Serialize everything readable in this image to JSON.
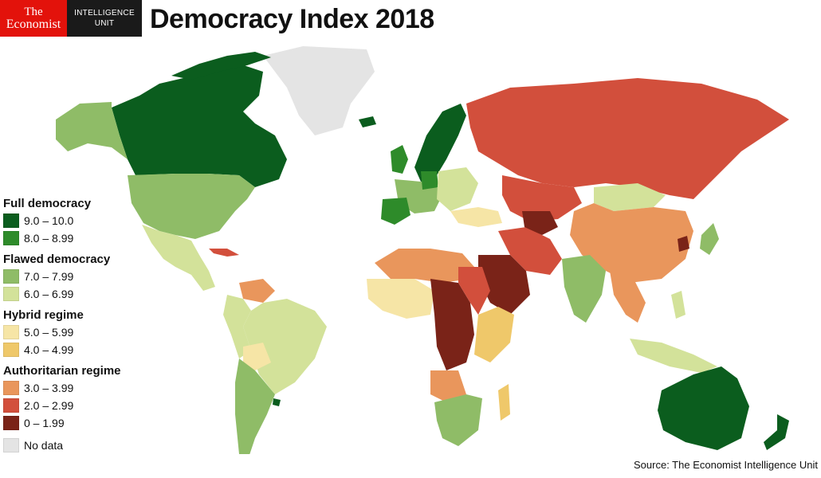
{
  "header": {
    "logo_line1": "The",
    "logo_line2": "Economist",
    "eiu_line1": "INTELLIGENCE",
    "eiu_line2": "UNIT",
    "title": "Democracy Index 2018"
  },
  "legend": {
    "groups": [
      {
        "heading": "Full democracy",
        "items": [
          {
            "label": "9.0 – 10.0",
            "color": "#0b5d1e"
          },
          {
            "label": "8.0 – 8.99",
            "color": "#2e8b2a"
          }
        ]
      },
      {
        "heading": "Flawed democracy",
        "items": [
          {
            "label": "7.0 – 7.99",
            "color": "#8fbc67"
          },
          {
            "label": "6.0 – 6.99",
            "color": "#d3e29a"
          }
        ]
      },
      {
        "heading": "Hybrid regime",
        "items": [
          {
            "label": "5.0 – 5.99",
            "color": "#f6e5a6"
          },
          {
            "label": "4.0 – 4.99",
            "color": "#efc86a"
          }
        ]
      },
      {
        "heading": "Authoritarian regime",
        "items": [
          {
            "label": "3.0 – 3.99",
            "color": "#e9965c"
          },
          {
            "label": "2.0 – 2.99",
            "color": "#d24f3c"
          },
          {
            "label": "0 – 1.99",
            "color": "#7a2318"
          }
        ]
      }
    ],
    "no_data": {
      "label": "No data",
      "color": "#e4e4e4"
    }
  },
  "source": "Source: The Economist Intelligence Unit"
}
